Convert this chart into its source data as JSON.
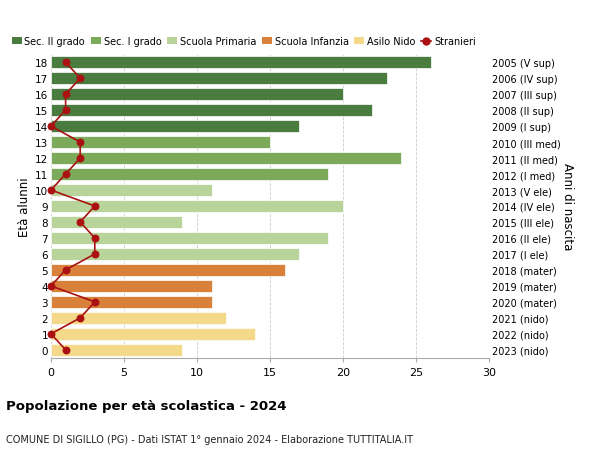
{
  "ages": [
    18,
    17,
    16,
    15,
    14,
    13,
    12,
    11,
    10,
    9,
    8,
    7,
    6,
    5,
    4,
    3,
    2,
    1,
    0
  ],
  "right_labels": [
    "2005 (V sup)",
    "2006 (IV sup)",
    "2007 (III sup)",
    "2008 (II sup)",
    "2009 (I sup)",
    "2010 (III med)",
    "2011 (II med)",
    "2012 (I med)",
    "2013 (V ele)",
    "2014 (IV ele)",
    "2015 (III ele)",
    "2016 (II ele)",
    "2017 (I ele)",
    "2018 (mater)",
    "2019 (mater)",
    "2020 (mater)",
    "2021 (nido)",
    "2022 (nido)",
    "2023 (nido)"
  ],
  "bar_values": [
    26,
    23,
    20,
    22,
    17,
    15,
    24,
    19,
    11,
    20,
    9,
    19,
    17,
    16,
    11,
    11,
    12,
    14,
    9
  ],
  "bar_colors": [
    "#4a7c3f",
    "#4a7c3f",
    "#4a7c3f",
    "#4a7c3f",
    "#4a7c3f",
    "#7aaa5a",
    "#7aaa5a",
    "#7aaa5a",
    "#b8d49a",
    "#b8d49a",
    "#b8d49a",
    "#b8d49a",
    "#b8d49a",
    "#d9813a",
    "#d9813a",
    "#d9813a",
    "#f5d98b",
    "#f5d98b",
    "#f5d98b"
  ],
  "stranieri_values": [
    1,
    2,
    1,
    1,
    0,
    2,
    2,
    1,
    0,
    3,
    2,
    3,
    3,
    1,
    0,
    3,
    2,
    0,
    1
  ],
  "stranieri_color": "#aa1111",
  "legend_labels": [
    "Sec. II grado",
    "Sec. I grado",
    "Scuola Primaria",
    "Scuola Infanzia",
    "Asilo Nido",
    "Stranieri"
  ],
  "legend_colors": [
    "#4a7c3f",
    "#7aaa5a",
    "#b8d49a",
    "#d9813a",
    "#f5d98b",
    "#aa1111"
  ],
  "ylabel_left": "Età alunni",
  "ylabel_right": "Anni di nascita",
  "title": "Popolazione per età scolastica - 2024",
  "subtitle": "COMUNE DI SIGILLO (PG) - Dati ISTAT 1° gennaio 2024 - Elaborazione TUTTITALIA.IT",
  "xlim": [
    0,
    30
  ],
  "xticks": [
    0,
    5,
    10,
    15,
    20,
    25,
    30
  ],
  "bg_color": "#ffffff"
}
